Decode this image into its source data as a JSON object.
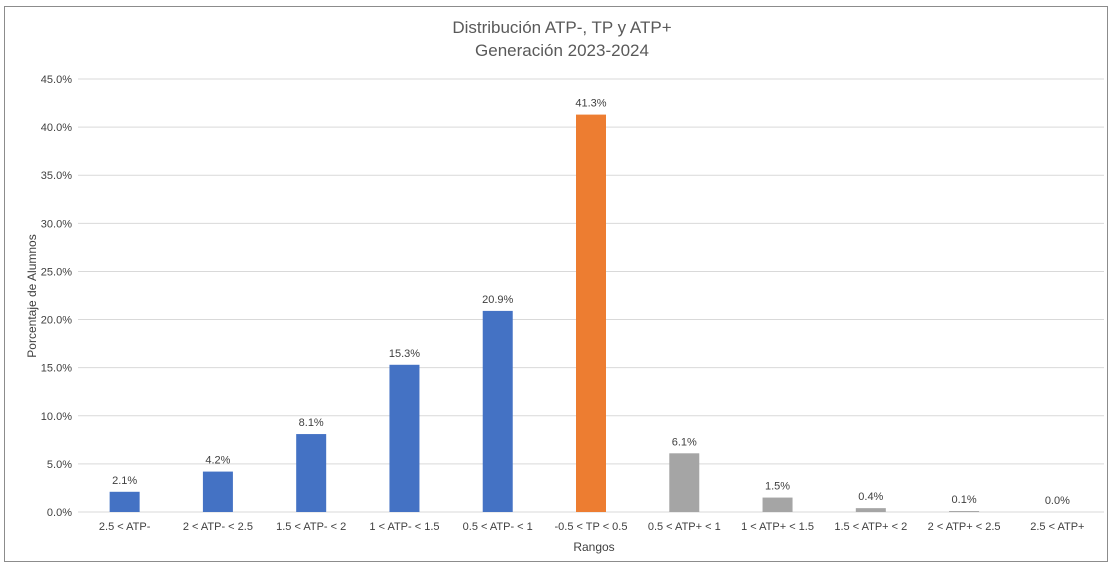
{
  "chart_data": {
    "type": "bar",
    "title": "Distribución ATP-, TP y ATP+",
    "subtitle": "Generación 2023-2024",
    "xlabel": "Rangos",
    "ylabel": "Porcentaje de Alumnos",
    "ylim": [
      0,
      45
    ],
    "ytick_step": 5,
    "yticks": [
      "0.0%",
      "5.0%",
      "10.0%",
      "15.0%",
      "20.0%",
      "25.0%",
      "30.0%",
      "35.0%",
      "40.0%",
      "45.0%"
    ],
    "grid": true,
    "legend": "none",
    "categories": [
      "2.5 < ATP-",
      "2 < ATP- < 2.5",
      "1.5 < ATP- < 2",
      "1 < ATP- < 1.5",
      "0.5 < ATP- < 1",
      "-0.5 < TP < 0.5",
      "0.5 < ATP+ < 1",
      "1 < ATP+ < 1.5",
      "1.5 < ATP+ < 2",
      "2 < ATP+ < 2.5",
      "2.5 < ATP+"
    ],
    "values": [
      2.1,
      4.2,
      8.1,
      15.3,
      20.9,
      41.3,
      6.1,
      1.5,
      0.4,
      0.1,
      0.0
    ],
    "data_labels": [
      "2.1%",
      "4.2%",
      "8.1%",
      "15.3%",
      "20.9%",
      "41.3%",
      "6.1%",
      "1.5%",
      "0.4%",
      "0.1%",
      "0.0%"
    ],
    "colors": [
      "#4472C4",
      "#4472C4",
      "#4472C4",
      "#4472C4",
      "#4472C4",
      "#ED7D31",
      "#A5A5A5",
      "#A5A5A5",
      "#A5A5A5",
      "#A5A5A5",
      "#A5A5A5"
    ],
    "gridline_color": "#d9d9d9"
  }
}
